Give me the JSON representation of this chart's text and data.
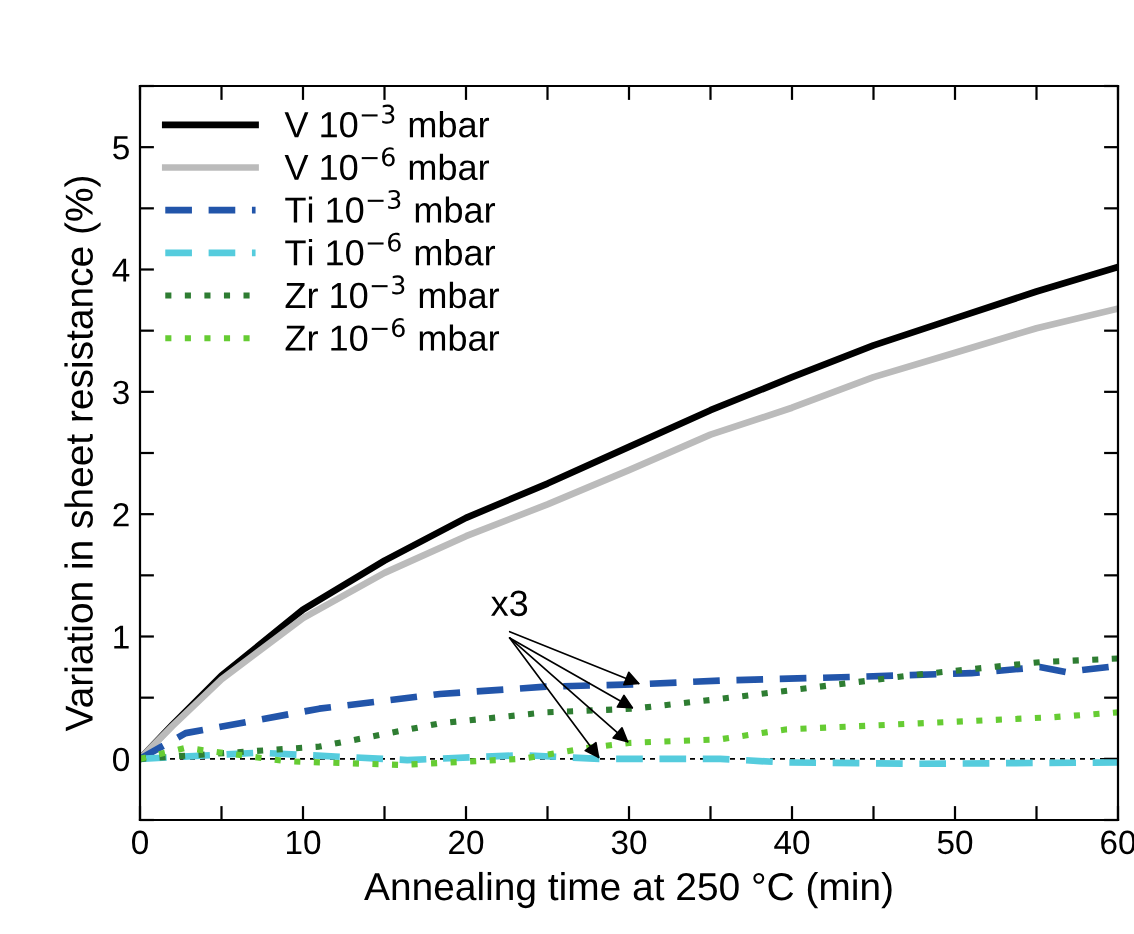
{
  "chart_data": {
    "type": "line",
    "xlabel": "Annealing time at 250 °C (min)",
    "ylabel": "Variation in sheet resistance (%)",
    "xlim": [
      0,
      60
    ],
    "ylim": [
      -0.5,
      5.5
    ],
    "xticks": [
      0,
      {
        "value": 5,
        "label": null
      },
      10,
      {
        "value": 15,
        "label": null
      },
      20,
      {
        "value": 25,
        "label": null
      },
      30,
      {
        "value": 35,
        "label": null
      },
      40,
      {
        "value": 45,
        "label": null
      },
      50,
      {
        "value": 55,
        "label": null
      },
      60
    ],
    "yticks": [
      {
        "value": -0.5,
        "label": null
      },
      0,
      {
        "value": 0.5,
        "label": null
      },
      1,
      {
        "value": 1.5,
        "label": null
      },
      2,
      {
        "value": 2.5,
        "label": null
      },
      3,
      {
        "value": 3.5,
        "label": null
      },
      4,
      {
        "value": 4.5,
        "label": null
      },
      5,
      {
        "value": 5.5,
        "label": null
      }
    ],
    "legend": "top left",
    "grid": false,
    "ref_lines": [
      {
        "axis": "y",
        "value": 0,
        "color": "#000000",
        "line_style": "dashed"
      }
    ],
    "annotations": [
      {
        "text": "x3",
        "x": 30.7,
        "y": 0.61
      }
    ],
    "series": [
      {
        "name": "V 10$^{−3}$ mbar",
        "color": "#000000",
        "line_style": "solid",
        "x": [
          0,
          2,
          5,
          10,
          15,
          20,
          25,
          30,
          35,
          40,
          45,
          50,
          55,
          60
        ],
        "values": [
          0,
          0.28,
          0.68,
          1.22,
          1.62,
          1.97,
          2.25,
          2.55,
          2.85,
          3.12,
          3.38,
          3.6,
          3.82,
          4.02
        ]
      },
      {
        "name": "V 10$^{−6}$ mbar",
        "color": "#bbbbbb",
        "line_style": "solid",
        "x": [
          0,
          2,
          5,
          10,
          15,
          20,
          25,
          30,
          35,
          40,
          45,
          50,
          55,
          60
        ],
        "values": [
          0,
          0.27,
          0.65,
          1.15,
          1.52,
          1.82,
          2.08,
          2.36,
          2.65,
          2.87,
          3.12,
          3.32,
          3.52,
          3.68
        ]
      },
      {
        "name": "Ti 10$^{−3}$ mbar",
        "color": "#2255aa",
        "line_style": "dashed",
        "x": [
          0,
          2.8,
          11,
          18.4,
          24.9,
          30.7,
          35.6,
          43.8,
          51,
          55.2,
          56.8,
          60
        ],
        "values": [
          0,
          0.21,
          0.41,
          0.53,
          0.59,
          0.61,
          0.64,
          0.67,
          0.7,
          0.75,
          0.71,
          0.76
        ]
      },
      {
        "name": "Ti 10$^{−6}$ mbar",
        "color": "#55ccdd",
        "line_style": "dashed",
        "x": [
          0,
          7.3,
          16.4,
          23.4,
          28.2,
          35.6,
          39.6,
          47.8,
          60
        ],
        "values": [
          0,
          0.05,
          -0.01,
          0.03,
          0.0,
          0.0,
          -0.03,
          -0.04,
          -0.03
        ]
      },
      {
        "name": "Zr 10$^{−3}$ mbar",
        "color": "#2e7d32",
        "line_style": "dotted",
        "x": [
          0,
          11,
          18.4,
          24.9,
          30.3,
          35.6,
          41.7,
          47.8,
          55.2,
          60
        ],
        "values": [
          0,
          0.1,
          0.29,
          0.38,
          0.41,
          0.49,
          0.59,
          0.69,
          0.79,
          0.82
        ]
      },
      {
        "name": "Zr 10$^{−6}$ mbar",
        "color": "#66cc33",
        "line_style": "dotted",
        "x": [
          0,
          2.8,
          9,
          16,
          23.4,
          27.5,
          30,
          35.6,
          39.6,
          47.8,
          56,
          60
        ],
        "values": [
          0,
          0.09,
          -0.02,
          -0.05,
          0.0,
          0.09,
          0.13,
          0.16,
          0.24,
          0.29,
          0.34,
          0.38
        ]
      }
    ]
  }
}
